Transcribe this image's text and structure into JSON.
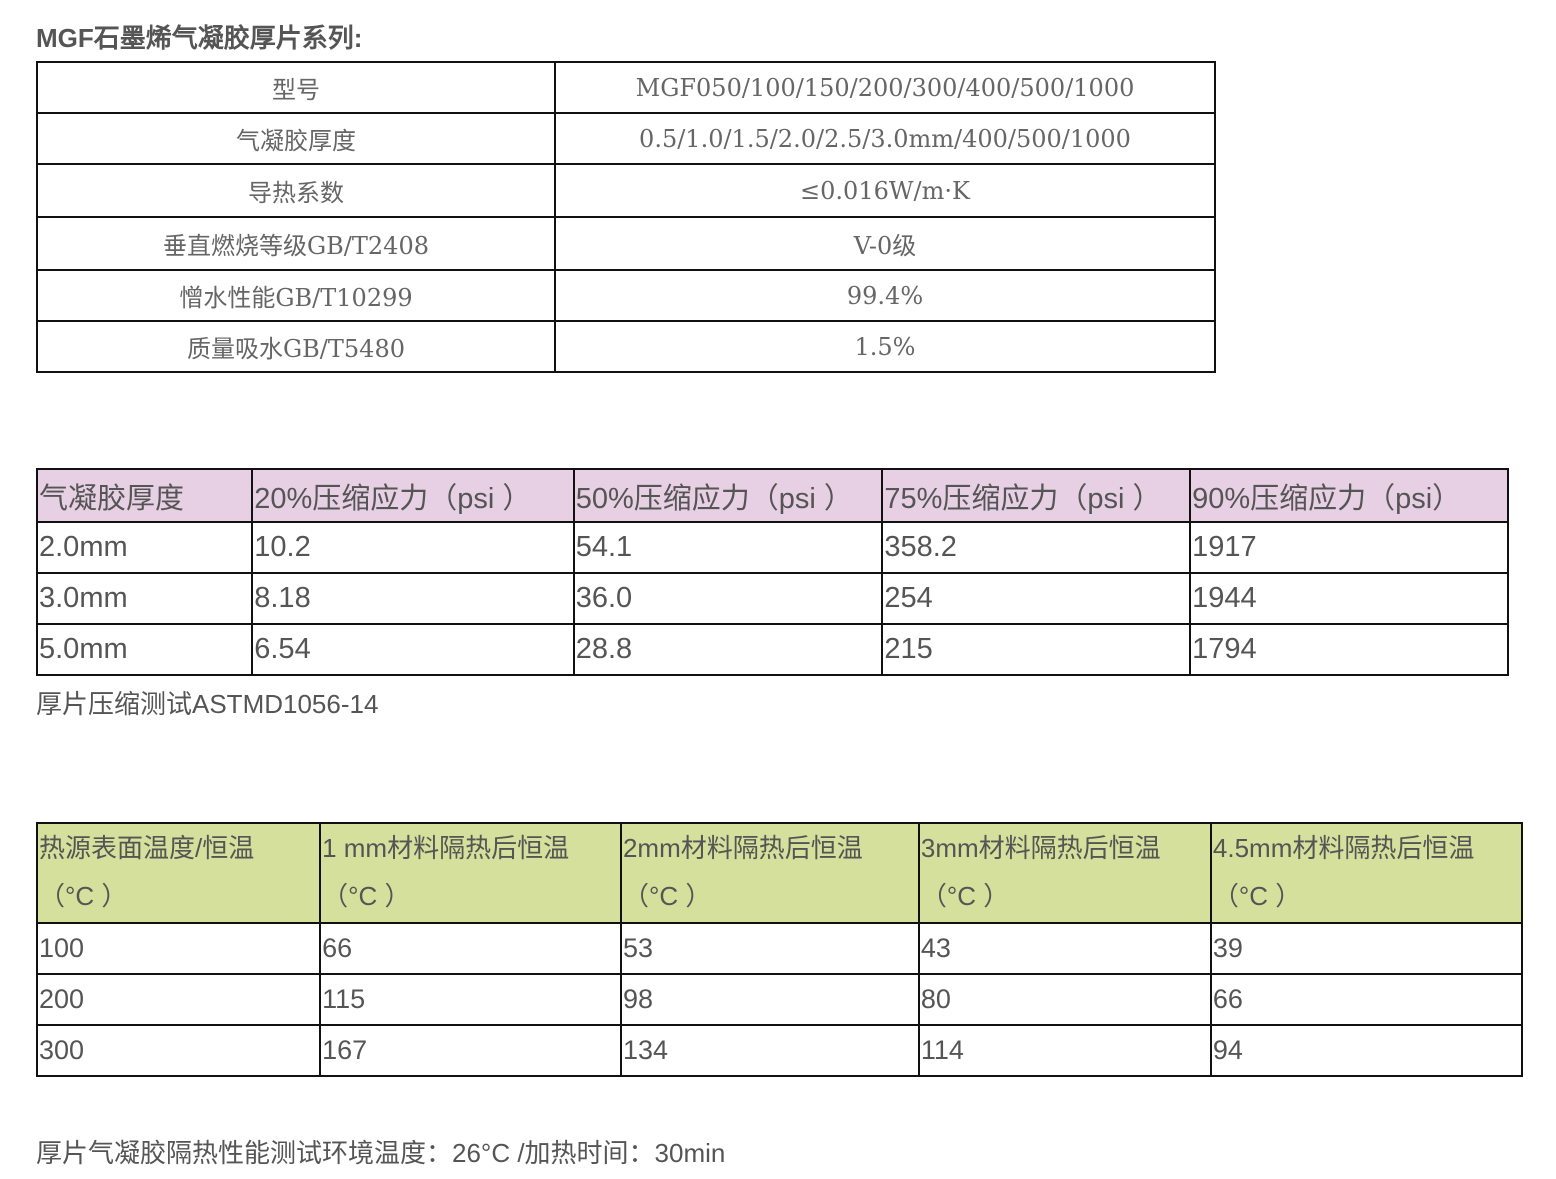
{
  "title": "MGF石墨烯气凝胶厚片系列:",
  "spec_table": [
    {
      "key": "型号",
      "value": "MGF050/100/150/200/300/400/500/1000"
    },
    {
      "key": "气凝胶厚度",
      "value": "0.5/1.0/1.5/2.0/2.5/3.0mm/400/500/1000"
    },
    {
      "key": "导热系数",
      "value": "≤0.016W/m·K"
    },
    {
      "key": "垂直燃烧等级GB/T2408",
      "value": "V-0级"
    },
    {
      "key": "憎水性能GB/T10299",
      "value": "99.4%"
    },
    {
      "key": "质量吸水GB/T5480",
      "value": "1.5%"
    }
  ],
  "compression": {
    "headers": [
      "气凝胶厚度",
      "20%压缩应力（psi ）",
      "50%压缩应力（psi ）",
      "75%压缩应力（psi ）",
      "90%压缩应力（psi）"
    ],
    "rows": [
      [
        "2.0mm",
        "10.2",
        "54.1",
        "358.2",
        "1917"
      ],
      [
        "3.0mm",
        "8.18",
        "36.0",
        "254",
        "1944"
      ],
      [
        "5.0mm",
        "6.54",
        "28.8",
        "215",
        "1794"
      ]
    ],
    "note": "厚片压缩测试ASTMD1056-14",
    "header_color": "#e7d0e4"
  },
  "insulation": {
    "headers": [
      [
        "热源表面温度/恒温",
        "（°C ）"
      ],
      [
        "1 mm材料隔热后恒温",
        "（°C ）"
      ],
      [
        "2mm材料隔热后恒温",
        "（°C ）"
      ],
      [
        "3mm材料隔热后恒温",
        "（°C ）"
      ],
      [
        "4.5mm材料隔热后恒温",
        "（°C ）"
      ]
    ],
    "rows": [
      [
        "100",
        "66",
        "53",
        "43",
        "39"
      ],
      [
        "200",
        "115",
        "98",
        "80",
        "66"
      ],
      [
        "300",
        "167",
        "134",
        "114",
        "94"
      ]
    ],
    "note": "厚片气凝胶隔热性能测试环境温度：26°C /加热时间：30min",
    "header_color": "#d4e09b"
  }
}
